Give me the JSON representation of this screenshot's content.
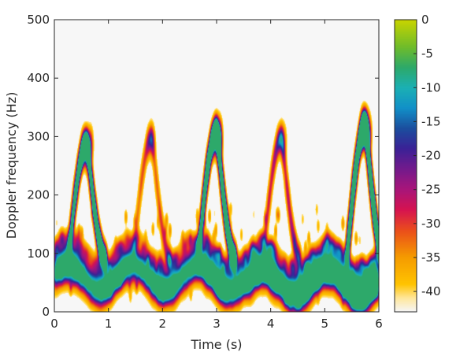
{
  "chart_data": {
    "type": "heatmap",
    "title": "",
    "xlabel": "Time (s)",
    "ylabel": "Doppler frequency (Hz)",
    "xlim": [
      0,
      6
    ],
    "ylim": [
      0,
      500
    ],
    "x_ticks": [
      "0",
      "1",
      "2",
      "3",
      "4",
      "5",
      "6"
    ],
    "y_ticks": [
      "0",
      "100",
      "200",
      "300",
      "400",
      "500"
    ],
    "grid": false,
    "legend": "none",
    "background_color": "#f7f7f7",
    "colorbar": {
      "placement": "right",
      "range": [
        -43,
        0
      ],
      "ticks": [
        "0",
        "-5",
        "-10",
        "-15",
        "-20",
        "-25",
        "-30",
        "-35",
        "-40"
      ],
      "colors": [
        {
          "value": -43,
          "color": "#f6f6f6"
        },
        {
          "value": -41,
          "color": "#ffe79a"
        },
        {
          "value": -39,
          "color": "#ffc400"
        },
        {
          "value": -35,
          "color": "#f59b00"
        },
        {
          "value": -31,
          "color": "#ea4d1c"
        },
        {
          "value": -28,
          "color": "#d61350"
        },
        {
          "value": -25,
          "color": "#a8157a"
        },
        {
          "value": -22,
          "color": "#741a8c"
        },
        {
          "value": -19,
          "color": "#3b2196"
        },
        {
          "value": -16,
          "color": "#1b4e9e"
        },
        {
          "value": -13,
          "color": "#1190c8"
        },
        {
          "value": -10,
          "color": "#1bb0b4"
        },
        {
          "value": -7,
          "color": "#2da96a"
        },
        {
          "value": -4,
          "color": "#6fbc2b"
        },
        {
          "value": 0,
          "color": "#c8d400"
        }
      ]
    },
    "features": [
      {
        "name": "torso-band",
        "time_range": [
          0,
          6
        ],
        "doppler_hz_range": [
          20,
          140
        ],
        "peak_level_db": -16
      },
      {
        "name": "limb-swing-1",
        "peak_time_s": 0.6,
        "peak_doppler_hz": 290,
        "peak_level_db": -22
      },
      {
        "name": "limb-swing-2",
        "peak_time_s": 1.8,
        "peak_doppler_hz": 300,
        "peak_level_db": -38
      },
      {
        "name": "limb-swing-3",
        "peak_time_s": 3.0,
        "peak_doppler_hz": 310,
        "peak_level_db": -18
      },
      {
        "name": "limb-swing-4",
        "peak_time_s": 4.2,
        "peak_doppler_hz": 300,
        "peak_level_db": -36
      },
      {
        "name": "limb-swing-5",
        "peak_time_s": 5.75,
        "peak_doppler_hz": 320,
        "peak_level_db": -12
      }
    ]
  }
}
